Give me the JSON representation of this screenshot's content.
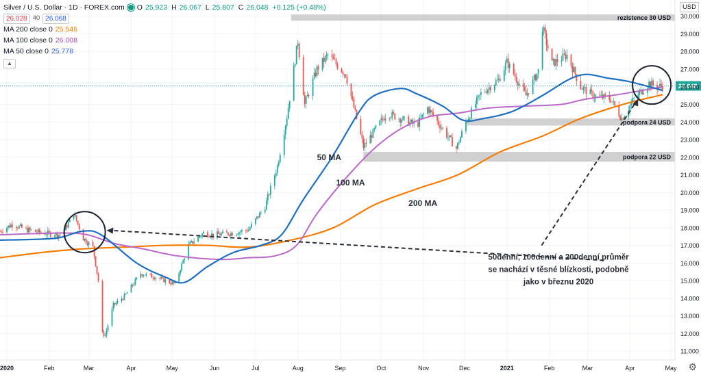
{
  "header": {
    "symbol": "Silver / U.S. Dollar · 1D · FOREX.com",
    "o_label": "O",
    "o": "25.923",
    "h_label": "H",
    "h": "26.067",
    "l_label": "L",
    "l": "25.807",
    "c_label": "C",
    "c": "26.048",
    "change": "+0.125 (+0.48%)",
    "bid": "26.028",
    "spread": "40",
    "ask": "26.068",
    "ma200_label": "MA 200 close 0",
    "ma200_value": "25.546",
    "ma100_label": "MA 100 close 0",
    "ma100_value": "26.008",
    "ma50_label": "MA 50 close 0",
    "ma50_value": "25.778",
    "collapse_icon": "chevron-up-icon"
  },
  "currency_label": "USD",
  "colors": {
    "up": "#26a69a",
    "down": "#ef5350",
    "ma50": "#1e6fc0",
    "ma100": "#ba68c8",
    "ma200": "#f57c00",
    "zone": "#c8c8c8",
    "price_tag": "#26a69a"
  },
  "chart_data": {
    "type": "candlestick",
    "title": "Silver / U.S. Dollar",
    "ylim": [
      10.5,
      30.3
    ],
    "y_ticks": [
      "30.000",
      "29.000",
      "28.000",
      "27.000",
      "26.000",
      "25.000",
      "24.000",
      "23.000",
      "22.000",
      "21.000",
      "20.000",
      "19.000",
      "18.000",
      "17.000",
      "16.000",
      "15.000",
      "14.000",
      "13.000",
      "12.000",
      "11.000"
    ],
    "x_ticks": [
      "2020",
      "Feb",
      "Mar",
      "Apr",
      "May",
      "Jun",
      "Jul",
      "Aug",
      "Sep",
      "Oct",
      "Nov",
      "Dec",
      "2021",
      "Feb",
      "Mar",
      "Apr",
      "May"
    ],
    "last_price": "26.048",
    "price_path": [
      [
        "2020-01-01",
        17.8
      ],
      [
        "2020-01-10",
        18.2
      ],
      [
        "2020-01-20",
        17.9
      ],
      [
        "2020-02-01",
        17.7
      ],
      [
        "2020-02-15",
        17.6
      ],
      [
        "2020-02-24",
        18.8
      ],
      [
        "2020-03-02",
        17.4
      ],
      [
        "2020-03-09",
        16.9
      ],
      [
        "2020-03-13",
        15.0
      ],
      [
        "2020-03-16",
        12.0
      ],
      [
        "2020-03-18",
        11.9
      ],
      [
        "2020-03-24",
        13.6
      ],
      [
        "2020-04-01",
        14.1
      ],
      [
        "2020-04-13",
        15.4
      ],
      [
        "2020-04-24",
        15.2
      ],
      [
        "2020-05-08",
        14.8
      ],
      [
        "2020-05-18",
        17.0
      ],
      [
        "2020-05-29",
        17.7
      ],
      [
        "2020-06-05",
        17.6
      ],
      [
        "2020-06-20",
        17.7
      ],
      [
        "2020-07-01",
        17.9
      ],
      [
        "2020-07-13",
        19.2
      ],
      [
        "2020-07-22",
        21.5
      ],
      [
        "2020-07-29",
        24.3
      ],
      [
        "2020-08-06",
        28.6
      ],
      [
        "2020-08-11",
        25.0
      ],
      [
        "2020-08-20",
        27.0
      ],
      [
        "2020-08-28",
        27.8
      ],
      [
        "2020-09-10",
        26.7
      ],
      [
        "2020-09-23",
        22.6
      ],
      [
        "2020-10-01",
        23.5
      ],
      [
        "2020-10-10",
        24.5
      ],
      [
        "2020-10-20",
        24.2
      ],
      [
        "2020-11-01",
        23.8
      ],
      [
        "2020-11-09",
        24.8
      ],
      [
        "2020-11-20",
        23.6
      ],
      [
        "2020-11-30",
        22.5
      ],
      [
        "2020-12-07",
        24.0
      ],
      [
        "2020-12-18",
        25.6
      ],
      [
        "2020-12-31",
        26.4
      ],
      [
        "2021-01-06",
        27.4
      ],
      [
        "2021-01-20",
        25.5
      ],
      [
        "2021-01-29",
        26.9
      ],
      [
        "2021-02-01",
        29.4
      ],
      [
        "2021-02-08",
        27.3
      ],
      [
        "2021-02-19",
        27.8
      ],
      [
        "2021-03-01",
        26.0
      ],
      [
        "2021-03-10",
        25.5
      ],
      [
        "2021-03-23",
        25.3
      ],
      [
        "2021-03-31",
        24.2
      ],
      [
        "2021-04-09",
        25.3
      ],
      [
        "2021-04-20",
        26.2
      ],
      [
        "2021-04-26",
        26.0
      ],
      [
        "2021-04-30",
        26.05
      ]
    ],
    "ma50": [
      [
        "2020-01-01",
        17.3
      ],
      [
        "2020-02-10",
        17.4
      ],
      [
        "2020-03-01",
        17.8
      ],
      [
        "2020-03-15",
        17.6
      ],
      [
        "2020-04-10",
        16.0
      ],
      [
        "2020-05-01",
        15.2
      ],
      [
        "2020-05-15",
        14.9
      ],
      [
        "2020-06-01",
        15.8
      ],
      [
        "2020-06-20",
        16.6
      ],
      [
        "2020-07-10",
        17.0
      ],
      [
        "2020-07-25",
        17.6
      ],
      [
        "2020-08-10",
        19.6
      ],
      [
        "2020-08-31",
        22.0
      ],
      [
        "2020-09-20",
        24.6
      ],
      [
        "2020-10-01",
        25.5
      ],
      [
        "2020-10-20",
        25.9
      ],
      [
        "2020-11-01",
        25.6
      ],
      [
        "2020-11-20",
        24.9
      ],
      [
        "2020-12-05",
        24.1
      ],
      [
        "2020-12-20",
        24.2
      ],
      [
        "2021-01-10",
        24.6
      ],
      [
        "2021-02-01",
        25.5
      ],
      [
        "2021-02-20",
        26.4
      ],
      [
        "2021-03-05",
        26.7
      ],
      [
        "2021-03-20",
        26.5
      ],
      [
        "2021-04-05",
        26.3
      ],
      [
        "2021-04-25",
        25.9
      ],
      [
        "2021-04-30",
        25.78
      ]
    ],
    "ma100": [
      [
        "2020-01-01",
        17.6
      ],
      [
        "2020-02-15",
        17.7
      ],
      [
        "2020-03-05",
        17.6
      ],
      [
        "2020-03-25",
        17.1
      ],
      [
        "2020-04-15",
        16.8
      ],
      [
        "2020-05-10",
        16.4
      ],
      [
        "2020-06-10",
        16.2
      ],
      [
        "2020-07-01",
        16.3
      ],
      [
        "2020-07-20",
        16.4
      ],
      [
        "2020-08-05",
        17.0
      ],
      [
        "2020-08-20",
        18.8
      ],
      [
        "2020-09-10",
        20.8
      ],
      [
        "2020-10-01",
        22.5
      ],
      [
        "2020-10-20",
        23.6
      ],
      [
        "2020-11-10",
        24.3
      ],
      [
        "2020-12-01",
        24.5
      ],
      [
        "2020-12-25",
        24.8
      ],
      [
        "2021-01-20",
        24.9
      ],
      [
        "2021-02-15",
        25.0
      ],
      [
        "2021-03-05",
        25.3
      ],
      [
        "2021-04-01",
        25.6
      ],
      [
        "2021-04-30",
        26.0
      ]
    ],
    "ma200": [
      [
        "2020-01-01",
        16.3
      ],
      [
        "2020-02-01",
        16.6
      ],
      [
        "2020-03-01",
        16.8
      ],
      [
        "2020-04-01",
        16.9
      ],
      [
        "2020-05-01",
        17.0
      ],
      [
        "2020-06-01",
        17.0
      ],
      [
        "2020-07-01",
        16.9
      ],
      [
        "2020-08-01",
        17.3
      ],
      [
        "2020-09-01",
        18.0
      ],
      [
        "2020-10-01",
        19.3
      ],
      [
        "2020-11-01",
        20.2
      ],
      [
        "2020-12-01",
        21.0
      ],
      [
        "2021-01-01",
        22.3
      ],
      [
        "2021-02-01",
        23.2
      ],
      [
        "2021-03-01",
        24.2
      ],
      [
        "2021-04-01",
        25.0
      ],
      [
        "2021-04-30",
        25.55
      ]
    ],
    "zones": [
      {
        "from": "2020-08-01",
        "to": "2021-05-09",
        "y_low": 29.75,
        "y_high": 30.1,
        "label": "rezistence 30 USD"
      },
      {
        "from": "2020-12-08",
        "to": "2021-05-09",
        "y_low": 23.8,
        "y_high": 24.2,
        "label": "podpora 24 USD"
      },
      {
        "from": "2020-09-23",
        "to": "2021-05-09",
        "y_low": 21.75,
        "y_high": 22.3,
        "label": "podpora 22 USD"
      }
    ],
    "annotations": {
      "ma50_label": "50 MA",
      "ma100_label": "100 MA",
      "ma200_label": "200 MA",
      "note_line1": "50denní, 100denní a 200denní průměr",
      "note_line2": "se nachází v těsné blízkosti, podobně",
      "note_line3": "jako v březnu 2020"
    }
  }
}
